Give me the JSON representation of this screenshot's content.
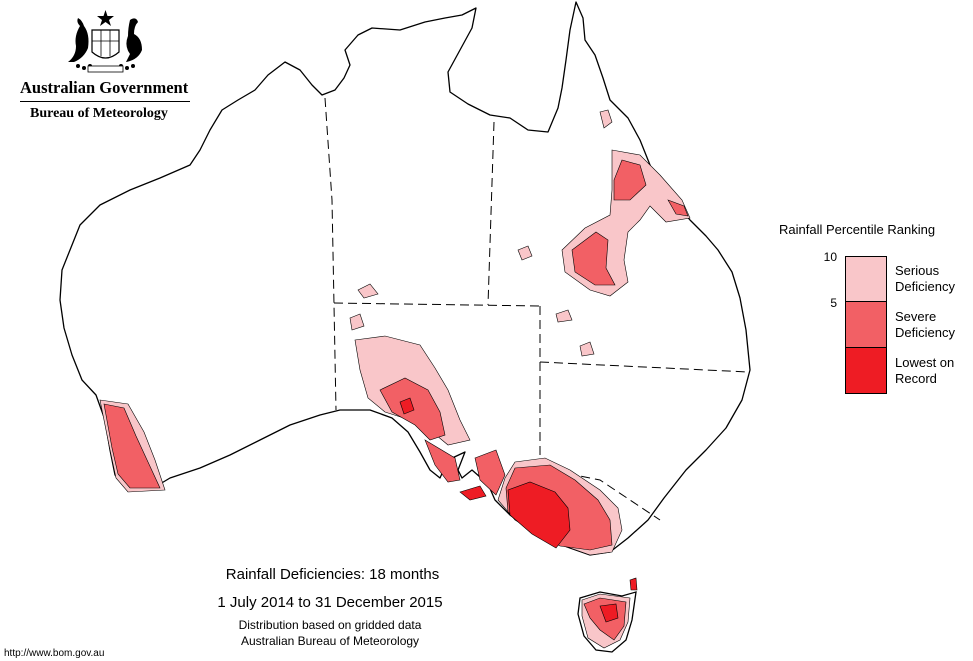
{
  "header": {
    "emblem_name": "coat-of-arms",
    "government": "Australian Government",
    "bureau": "Bureau of Meteorology"
  },
  "legend": {
    "title": "Rainfall Percentile Ranking",
    "ticks": [
      "10",
      "5"
    ],
    "items": [
      {
        "label_line1": "Serious",
        "label_line2": "Deficiency",
        "color": "#f9c6c9"
      },
      {
        "label_line1": "Severe",
        "label_line2": "Deficiency",
        "color": "#f26065"
      },
      {
        "label_line1": "Lowest on",
        "label_line2": "Record",
        "color": "#ee1c24"
      }
    ]
  },
  "caption": {
    "title": "Rainfall Deficiencies: 18 months",
    "period": "1 July 2014 to 31 December 2015",
    "note1": "Distribution based on gridded data",
    "note2": "Australian Bureau of Meteorology"
  },
  "footer": {
    "url": "http://www.bom.gov.au"
  },
  "map": {
    "region": "Australia",
    "colors": {
      "outline": "#000000",
      "serious": "#f9c6c9",
      "severe": "#f26065",
      "lowest": "#ee1c24"
    }
  }
}
